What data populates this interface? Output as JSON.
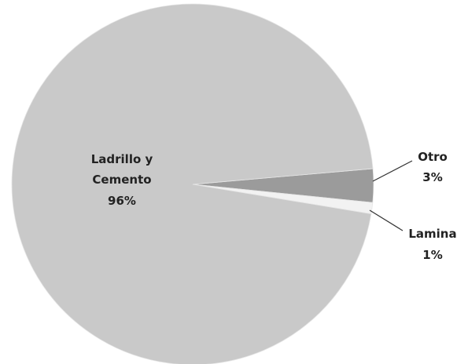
{
  "chart_data": {
    "type": "pie",
    "categories": [
      "Ladrillo y Cemento",
      "Otro",
      "Lamina"
    ],
    "values": [
      96,
      3,
      1
    ],
    "value_labels": [
      "96%",
      "3%",
      "1%"
    ],
    "colors": [
      "#c9c9c9",
      "#9b9b9b",
      "#f2f2f2"
    ]
  }
}
